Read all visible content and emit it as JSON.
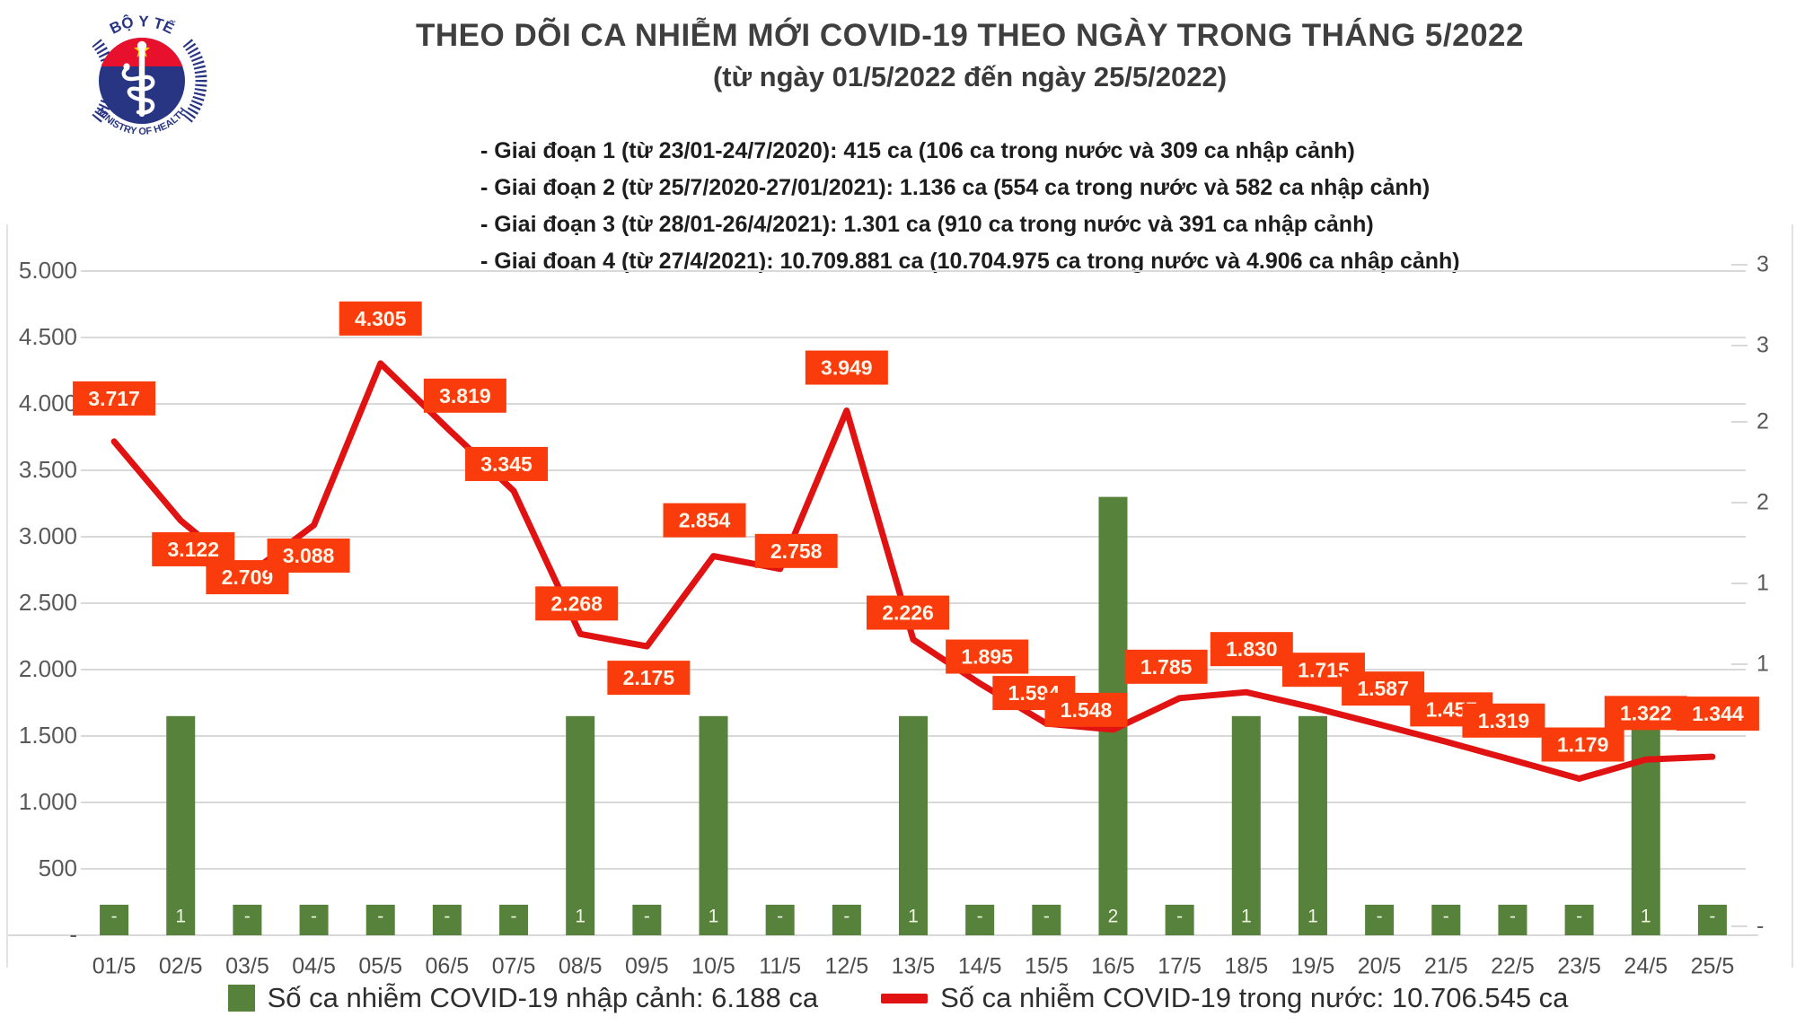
{
  "header": {
    "title": "THEO DÕI CA NHIỄM MỚI COVID-19 THEO NGÀY TRONG THÁNG 5/2022",
    "subtitle": "(từ ngày 01/5/2022 đến ngày 25/5/2022)",
    "annotations": [
      "- Giai đoạn 1 (từ 23/01-24/7/2020): 415 ca (106 ca trong nước và 309 ca nhập cảnh)",
      "- Giai đoạn 2 (từ 25/7/2020-27/01/2021): 1.136 ca (554 ca trong nước và 582 ca nhập cảnh)",
      "- Giai đoạn 3 (từ 28/01-26/4/2021): 1.301 ca (910 ca trong nước và 391 ca nhập cảnh)",
      "- Giai đoạn 4 (từ 27/4/2021): 10.709.881 ca (10.704.975 ca trong nước và 4.906 ca nhập cảnh)"
    ]
  },
  "logo": {
    "top_text": "BỘ Y TẾ",
    "bottom_text": "MINISTRY OF HEALTH",
    "colors": {
      "navy": "#283583",
      "red": "#e8112d",
      "star": "#ffd500"
    }
  },
  "chart_data": {
    "type": "combo bar+line",
    "categories": [
      "01/5",
      "02/5",
      "03/5",
      "04/5",
      "05/5",
      "06/5",
      "07/5",
      "08/5",
      "09/5",
      "10/5",
      "11/5",
      "12/5",
      "13/5",
      "14/5",
      "15/5",
      "16/5",
      "17/5",
      "18/5",
      "19/5",
      "20/5",
      "21/5",
      "22/5",
      "23/5",
      "24/5",
      "25/5"
    ],
    "series": [
      {
        "name": "Số ca nhiễm COVID-19 nhập cảnh",
        "type": "bar",
        "axis": "right",
        "values": [
          "-",
          "1",
          "-",
          "-",
          "-",
          "-",
          "-",
          "1",
          "-",
          "1",
          "-",
          "-",
          "1",
          "-",
          "-",
          "2",
          "-",
          "1",
          "1",
          "-",
          "-",
          "-",
          "-",
          "1",
          "-"
        ]
      },
      {
        "name": "Số ca nhiễm COVID-19 trong nước",
        "type": "line",
        "axis": "left",
        "values": [
          3717,
          3122,
          2709,
          3088,
          4305,
          3819,
          3345,
          2268,
          2175,
          2854,
          2758,
          3949,
          2226,
          1895,
          1594,
          1548,
          1785,
          1830,
          1715,
          1587,
          1457,
          1319,
          1179,
          1322,
          1344
        ],
        "point_labels": [
          "3.717",
          "3.122",
          "2.709",
          "3.088",
          "4.305",
          "3.819",
          "3.345",
          "2.268",
          "2.175",
          "2.854",
          "2.758",
          "3.949",
          "2.226",
          "1.895",
          "1.594",
          "1.548",
          "1.785",
          "1.830",
          "1.715",
          "1.587",
          "1.457",
          "1.319",
          "1.179",
          "1.322",
          "1.344"
        ]
      }
    ],
    "left_axis": {
      "min": 0,
      "max": 5000,
      "tick_labels": [
        "5.000",
        "4.500",
        "4.000",
        "3.500",
        "3.000",
        "2.500",
        "2.000",
        "1.500",
        "1.000",
        "500",
        "-"
      ]
    },
    "right_axis": {
      "visible_truncated_labels": [
        "3",
        "3",
        "2",
        "2",
        "1",
        "1",
        "-"
      ]
    },
    "grid": true,
    "legend_position": "bottom",
    "colors": {
      "bar": "#56823b",
      "line": "#e01212",
      "label_bg": "#fa3b0c",
      "label_text": "#fff4e8",
      "grid": "#d9d9d9",
      "axis_text": "#595959",
      "bar_value_text": "#eef3e2"
    }
  },
  "legend": {
    "imported": "Số ca nhiễm COVID-19 nhập cảnh: 6.188 ca",
    "domestic": "Số ca nhiễm COVID-19 trong nước: 10.706.545 ca"
  }
}
